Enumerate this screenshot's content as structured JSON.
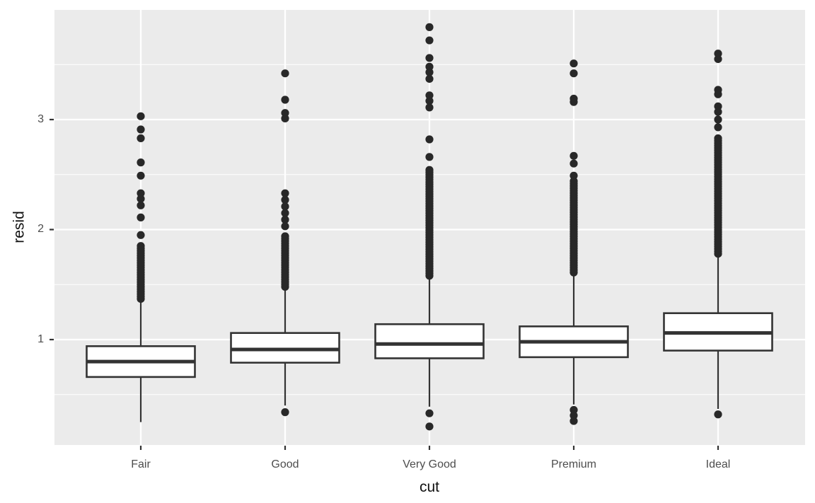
{
  "chart_data": {
    "type": "boxplot",
    "title": "",
    "xlabel": "cut",
    "ylabel": "resid",
    "grid": "on",
    "legend": "none",
    "x_axis": {
      "categories": [
        "Fair",
        "Good",
        "Very Good",
        "Premium",
        "Ideal"
      ]
    },
    "y_axis": {
      "tick_labels": [
        "1",
        "2",
        "3"
      ],
      "tick_values": [
        1,
        2,
        3
      ],
      "minor_tick_values": [
        0.5,
        1.5,
        2.5,
        3.5
      ],
      "range": [
        0.04,
        4.0
      ]
    },
    "boxes": [
      {
        "category": "Fair",
        "lower_whisker": 0.25,
        "q1": 0.66,
        "median": 0.8,
        "q3": 0.94,
        "upper_whisker": 1.35,
        "outliers_dense_range": [
          1.37,
          1.87
        ],
        "outliers_upper": [
          1.95,
          2.11,
          2.22,
          2.28,
          2.33,
          2.49,
          2.61,
          2.83,
          2.91,
          3.03
        ],
        "outliers_lower": []
      },
      {
        "category": "Good",
        "lower_whisker": 0.4,
        "q1": 0.79,
        "median": 0.91,
        "q3": 1.06,
        "upper_whisker": 1.46,
        "outliers_dense_range": [
          1.48,
          1.95
        ],
        "outliers_upper": [
          2.03,
          2.09,
          2.15,
          2.21,
          2.27,
          2.33,
          3.01,
          3.06,
          3.18,
          3.42
        ],
        "outliers_lower": [
          0.34
        ]
      },
      {
        "category": "Very Good",
        "lower_whisker": 0.39,
        "q1": 0.83,
        "median": 0.96,
        "q3": 1.14,
        "upper_whisker": 1.56,
        "outliers_dense_range": [
          1.58,
          2.56
        ],
        "outliers_upper": [
          2.66,
          2.82,
          3.11,
          3.17,
          3.22,
          3.37,
          3.43,
          3.48,
          3.56,
          3.72,
          3.84
        ],
        "outliers_lower": [
          0.33,
          0.21
        ]
      },
      {
        "category": "Premium",
        "lower_whisker": 0.41,
        "q1": 0.84,
        "median": 0.98,
        "q3": 1.12,
        "upper_whisker": 1.6,
        "outliers_dense_range": [
          1.61,
          2.46
        ],
        "outliers_upper": [
          2.49,
          2.6,
          2.67,
          3.16,
          3.19,
          3.42,
          3.51
        ],
        "outliers_lower": [
          0.36,
          0.31,
          0.26
        ]
      },
      {
        "category": "Ideal",
        "lower_whisker": 0.37,
        "q1": 0.9,
        "median": 1.06,
        "q3": 1.24,
        "upper_whisker": 1.76,
        "outliers_dense_range": [
          1.78,
          2.85
        ],
        "outliers_upper": [
          2.93,
          3.0,
          3.07,
          3.12,
          3.23,
          3.27,
          3.55,
          3.6
        ],
        "outliers_lower": [
          0.32
        ]
      }
    ],
    "colors": {
      "panel_background": "#EBEBEB",
      "grid_major": "#FFFFFF",
      "grid_minor": "#FFFFFF",
      "box_fill": "#FFFFFF",
      "box_stroke": "#333333",
      "outlier_dot": "#282828",
      "tick_mark": "#333333",
      "tick_label": "#4D4D4D",
      "axis_title": "#111111"
    }
  }
}
